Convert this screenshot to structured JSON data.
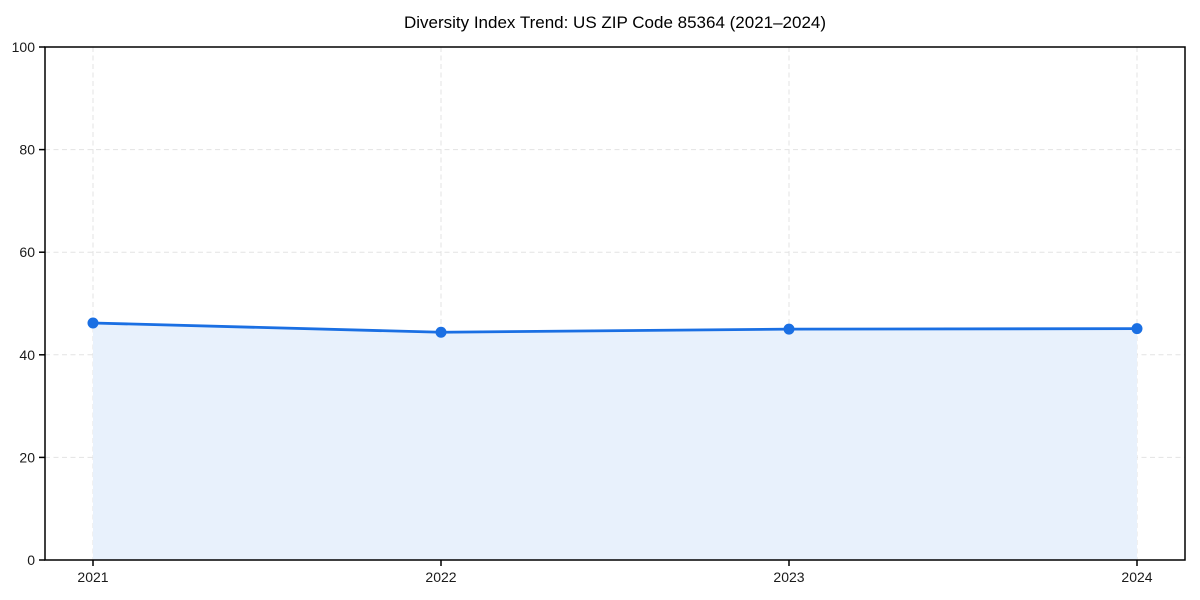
{
  "chart_data": {
    "type": "area",
    "title": "Diversity Index Trend: US ZIP Code 85364 (2021–2024)",
    "categories": [
      "2021",
      "2022",
      "2023",
      "2024"
    ],
    "series": [
      {
        "name": "Diversity Index",
        "values": [
          46.2,
          44.4,
          45.0,
          45.1
        ]
      }
    ],
    "xlabel": "",
    "ylabel": "",
    "ylim": [
      0,
      100
    ],
    "yticks": [
      0,
      20,
      40,
      60,
      80,
      100
    ],
    "grid": true,
    "grid_style": "dashed",
    "legend": "none",
    "marker": "circle",
    "colors": {
      "line": "#1a6fe3",
      "marker": "#1a6fe3",
      "fill": "#e8f1fc",
      "grid": "#e3e3e3",
      "spine": "#000000",
      "tick_label": "#1a1a1a",
      "background": "#ffffff"
    }
  }
}
